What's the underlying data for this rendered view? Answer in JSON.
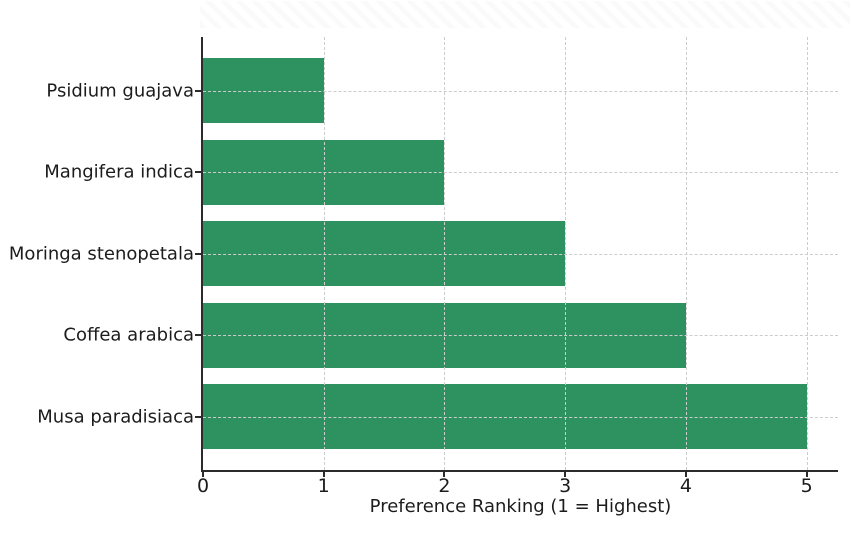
{
  "chart_data": {
    "type": "bar",
    "orientation": "horizontal",
    "title": "",
    "categories": [
      "Psidium guajava",
      "Mangifera indica",
      "Moringa stenopetala",
      "Coffea arabica",
      "Musa paradisiaca"
    ],
    "values": [
      1,
      2,
      3,
      4,
      5
    ],
    "xlabel": "Preference Ranking (1 = Highest)",
    "ylabel": "",
    "xlim": [
      0,
      5.26
    ],
    "xticks": [
      0,
      1,
      2,
      3,
      4,
      5
    ],
    "grid": {
      "vertical": true,
      "horizontal": true,
      "line_style": "dashed",
      "color": "#cccccc"
    },
    "legend": "none",
    "colors": {
      "bar": "#2e9160",
      "axis": "#2b2b2b",
      "tick_label": "#1c1c1c"
    }
  }
}
